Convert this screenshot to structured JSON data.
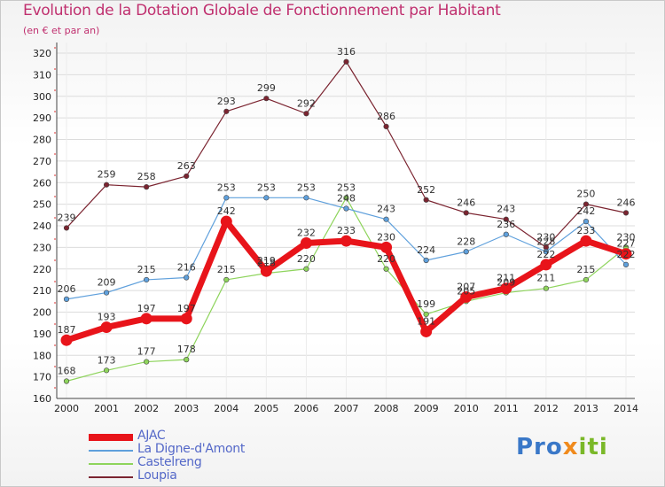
{
  "title": "Evolution de la Dotation Globale de Fonctionnement par Habitant",
  "subtitle": "(en € et par an)",
  "logo": {
    "p": "Pro",
    "x": "x",
    "rest": "iti"
  },
  "chart_data": {
    "type": "line",
    "title": "Evolution de la Dotation Globale de Fonctionnement par Habitant",
    "subtitle": "(en € et par an)",
    "xlabel": "",
    "ylabel": "",
    "ylim": [
      160,
      320
    ],
    "yticks": [
      160,
      170,
      180,
      190,
      200,
      210,
      220,
      230,
      240,
      250,
      260,
      270,
      280,
      290,
      300,
      310,
      320
    ],
    "categories": [
      "2000",
      "2001",
      "2002",
      "2003",
      "2004",
      "2005",
      "2006",
      "2007",
      "2008",
      "2009",
      "2010",
      "2011",
      "2012",
      "2013",
      "2014"
    ],
    "legend_position": "bottom-left",
    "series": [
      {
        "name": "Loupia",
        "color": "#7b2430",
        "width": 1.2,
        "marker": 2.8,
        "values": [
          239,
          259,
          258,
          263,
          293,
          299,
          292,
          316,
          286,
          252,
          246,
          243,
          230,
          250,
          246
        ]
      },
      {
        "name": "Castelreng",
        "color": "#8ed45c",
        "width": 1.2,
        "marker": 2.8,
        "values": [
          168,
          173,
          177,
          178,
          215,
          218,
          220,
          253,
          220,
          199,
          205,
          209,
          211,
          215,
          230
        ]
      },
      {
        "name": "La Digne-d'Amont",
        "color": "#5fa0dc",
        "width": 1.2,
        "marker": 2.8,
        "values": [
          206,
          209,
          215,
          216,
          253,
          253,
          253,
          248,
          243,
          224,
          228,
          236,
          228,
          242,
          222
        ]
      },
      {
        "name": "AJAC",
        "color": "#e8141a",
        "width": 7,
        "marker": 6.5,
        "values": [
          187,
          193,
          197,
          197,
          242,
          219,
          232,
          233,
          230,
          191,
          207,
          211,
          222,
          233,
          227
        ]
      }
    ],
    "legend_order": [
      "AJAC",
      "La Digne-d'Amont",
      "Castelreng",
      "Loupia"
    ]
  }
}
